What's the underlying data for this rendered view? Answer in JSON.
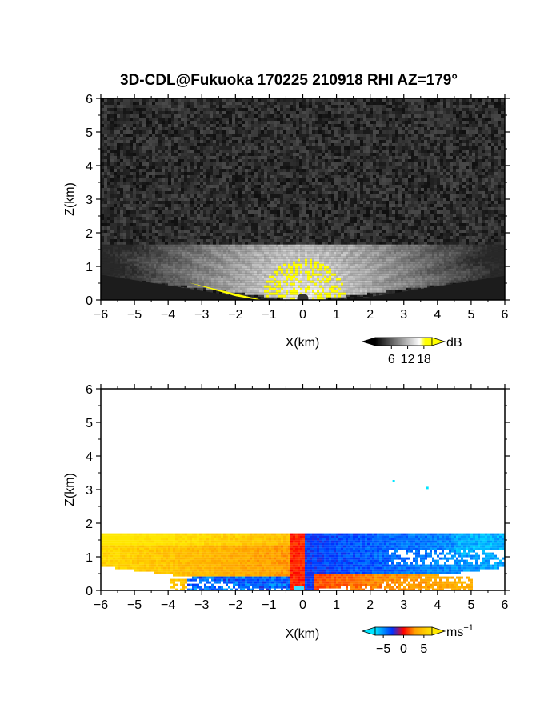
{
  "title": "3D-CDL@Fukuoka 170225 210918 RHI AZ=179°",
  "chart_data": [
    {
      "type": "heatmap",
      "quantity": "SNR",
      "xlabel": "X(km)",
      "ylabel": "Z(km)",
      "xlim": [
        -6,
        6
      ],
      "ylim": [
        0,
        6
      ],
      "x_ticks": [
        "−6",
        "−5",
        "−4",
        "−3",
        "−2",
        "−1",
        "0",
        "1",
        "2",
        "3",
        "4",
        "5",
        "6"
      ],
      "y_ticks": [
        "0",
        "1",
        "2",
        "3",
        "4",
        "5",
        "6"
      ],
      "data_top_km": 1.65,
      "colorbar": {
        "unit": "dB",
        "ticks": [
          "6",
          "12",
          "18"
        ],
        "range": [
          0,
          21
        ],
        "colors": [
          "#000000",
          "#ffffff",
          "#ffff00"
        ]
      }
    },
    {
      "type": "heatmap",
      "quantity": "radial velocity",
      "xlabel": "X(km)",
      "ylabel": "Z(km)",
      "xlim": [
        -6,
        6
      ],
      "ylim": [
        0,
        6
      ],
      "x_ticks": [
        "−6",
        "−5",
        "−4",
        "−3",
        "−2",
        "−1",
        "0",
        "1",
        "2",
        "3",
        "4",
        "5",
        "6"
      ],
      "y_ticks": [
        "0",
        "1",
        "2",
        "3",
        "4",
        "5",
        "6"
      ],
      "data_top_km": 1.7,
      "isolated_points": [
        [
          2.7,
          3.25
        ],
        [
          3.7,
          3.05
        ]
      ],
      "colorbar": {
        "unit": "ms",
        "unit_exp": "−1",
        "ticks": [
          "−5",
          "0",
          "5"
        ],
        "range": [
          -7,
          7
        ],
        "colors": [
          "#00e5ff",
          "#0033ff",
          "#ff0000",
          "#ffa000",
          "#ffe800"
        ]
      }
    }
  ]
}
